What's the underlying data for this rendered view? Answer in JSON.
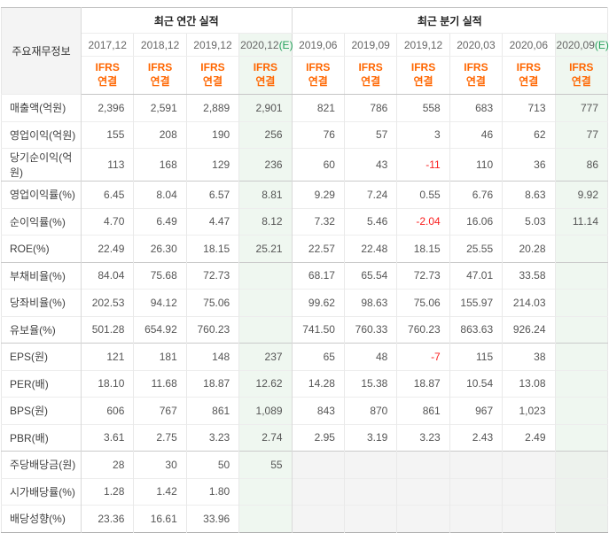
{
  "table": {
    "corner_label": "주요재무정보",
    "groups": [
      {
        "label": "최근 연간 실적"
      },
      {
        "label": "최근 분기 실적"
      }
    ],
    "ifrs": {
      "line1": "IFRS",
      "line2": "연결"
    },
    "columns": [
      {
        "period": "2017,12",
        "suffix": "",
        "estimate": false
      },
      {
        "period": "2018,12",
        "suffix": "",
        "estimate": false
      },
      {
        "period": "2019,12",
        "suffix": "",
        "estimate": false
      },
      {
        "period": "2020,12",
        "suffix": "(E)",
        "estimate": true
      },
      {
        "period": "2019,06",
        "suffix": "",
        "estimate": false
      },
      {
        "period": "2019,09",
        "suffix": "",
        "estimate": false
      },
      {
        "period": "2019,12",
        "suffix": "",
        "estimate": false
      },
      {
        "period": "2020,03",
        "suffix": "",
        "estimate": false
      },
      {
        "period": "2020,06",
        "suffix": "",
        "estimate": false
      },
      {
        "period": "2020,09",
        "suffix": "(E)",
        "estimate": true
      }
    ],
    "rows": [
      {
        "label": "매출액(억원)",
        "section_start": false,
        "quarterly_disabled": false,
        "values": [
          "2,396",
          "2,591",
          "2,889",
          "2,901",
          "821",
          "786",
          "558",
          "683",
          "713",
          "777"
        ]
      },
      {
        "label": "영업이익(억원)",
        "section_start": false,
        "quarterly_disabled": false,
        "values": [
          "155",
          "208",
          "190",
          "256",
          "76",
          "57",
          "3",
          "46",
          "62",
          "77"
        ]
      },
      {
        "label": "당기순이익(억원)",
        "section_start": false,
        "quarterly_disabled": false,
        "values": [
          "113",
          "168",
          "129",
          "236",
          "60",
          "43",
          "-11",
          "110",
          "36",
          "86"
        ]
      },
      {
        "label": "영업이익률(%)",
        "section_start": true,
        "quarterly_disabled": false,
        "values": [
          "6.45",
          "8.04",
          "6.57",
          "8.81",
          "9.29",
          "7.24",
          "0.55",
          "6.76",
          "8.63",
          "9.92"
        ]
      },
      {
        "label": "순이익률(%)",
        "section_start": false,
        "quarterly_disabled": false,
        "values": [
          "4.70",
          "6.49",
          "4.47",
          "8.12",
          "7.32",
          "5.46",
          "-2.04",
          "16.06",
          "5.03",
          "11.14"
        ]
      },
      {
        "label": "ROE(%)",
        "section_start": false,
        "quarterly_disabled": false,
        "values": [
          "22.49",
          "26.30",
          "18.15",
          "25.21",
          "22.57",
          "22.48",
          "18.15",
          "25.55",
          "20.28",
          ""
        ]
      },
      {
        "label": "부채비율(%)",
        "section_start": true,
        "quarterly_disabled": false,
        "values": [
          "84.04",
          "75.68",
          "72.73",
          "",
          "68.17",
          "65.54",
          "72.73",
          "47.01",
          "33.58",
          ""
        ]
      },
      {
        "label": "당좌비율(%)",
        "section_start": false,
        "quarterly_disabled": false,
        "values": [
          "202.53",
          "94.12",
          "75.06",
          "",
          "99.62",
          "98.63",
          "75.06",
          "155.97",
          "214.03",
          ""
        ]
      },
      {
        "label": "유보율(%)",
        "section_start": false,
        "quarterly_disabled": false,
        "values": [
          "501.28",
          "654.92",
          "760.23",
          "",
          "741.50",
          "760.33",
          "760.23",
          "863.63",
          "926.24",
          ""
        ]
      },
      {
        "label": "EPS(원)",
        "section_start": true,
        "quarterly_disabled": false,
        "values": [
          "121",
          "181",
          "148",
          "237",
          "65",
          "48",
          "-7",
          "115",
          "38",
          ""
        ]
      },
      {
        "label": "PER(배)",
        "section_start": false,
        "quarterly_disabled": false,
        "values": [
          "18.10",
          "11.68",
          "18.87",
          "12.62",
          "14.28",
          "15.38",
          "18.87",
          "10.54",
          "13.08",
          ""
        ]
      },
      {
        "label": "BPS(원)",
        "section_start": false,
        "quarterly_disabled": false,
        "values": [
          "606",
          "767",
          "861",
          "1,089",
          "843",
          "870",
          "861",
          "967",
          "1,023",
          ""
        ]
      },
      {
        "label": "PBR(배)",
        "section_start": false,
        "quarterly_disabled": false,
        "values": [
          "3.61",
          "2.75",
          "3.23",
          "2.74",
          "2.95",
          "3.19",
          "3.23",
          "2.43",
          "2.49",
          ""
        ]
      },
      {
        "label": "주당배당금(원)",
        "section_start": true,
        "quarterly_disabled": true,
        "values": [
          "28",
          "30",
          "50",
          "55",
          "",
          "",
          "",
          "",
          "",
          ""
        ]
      },
      {
        "label": "시가배당률(%)",
        "section_start": false,
        "quarterly_disabled": true,
        "values": [
          "1.28",
          "1.42",
          "1.80",
          "",
          "",
          "",
          "",
          "",
          "",
          ""
        ]
      },
      {
        "label": "배당성향(%)",
        "section_start": false,
        "quarterly_disabled": true,
        "values": [
          "23.36",
          "16.61",
          "33.96",
          "",
          "",
          "",
          "",
          "",
          "",
          ""
        ]
      }
    ]
  },
  "colors": {
    "accent_orange": "#ff6600",
    "estimate_green": "#22a05a",
    "negative_red": "#fa2020",
    "estimate_bg": "#eff7f0",
    "disabled_bg": "#f4f4f4",
    "corner_bg": "#f4f4f4"
  }
}
